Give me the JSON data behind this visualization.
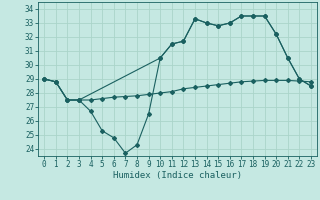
{
  "bg_color": "#c5e8e2",
  "grid_color": "#aad4ca",
  "line_color": "#1a6060",
  "xlabel": "Humidex (Indice chaleur)",
  "ylim": [
    23.5,
    34.5
  ],
  "xlim": [
    -0.5,
    23.5
  ],
  "yticks": [
    24,
    25,
    26,
    27,
    28,
    29,
    30,
    31,
    32,
    33,
    34
  ],
  "xticks": [
    0,
    1,
    2,
    3,
    4,
    5,
    6,
    7,
    8,
    9,
    10,
    11,
    12,
    13,
    14,
    15,
    16,
    17,
    18,
    19,
    20,
    21,
    22,
    23
  ],
  "line_flat_x": [
    0,
    1,
    2,
    3,
    4,
    5,
    6,
    7,
    8,
    9,
    10,
    11,
    12,
    13,
    14,
    15,
    16,
    17,
    18,
    19,
    20,
    21,
    22,
    23
  ],
  "line_flat_y": [
    29.0,
    28.8,
    27.5,
    27.5,
    27.5,
    27.6,
    27.7,
    27.75,
    27.8,
    27.9,
    28.0,
    28.1,
    28.3,
    28.4,
    28.5,
    28.6,
    28.7,
    28.8,
    28.85,
    28.9,
    28.9,
    28.9,
    28.85,
    28.8
  ],
  "line_up_x": [
    0,
    1,
    2,
    3,
    10,
    11,
    12,
    13,
    14,
    15,
    16,
    17,
    18,
    19,
    20,
    21,
    22,
    23
  ],
  "line_up_y": [
    29.0,
    28.8,
    27.5,
    27.5,
    30.5,
    31.5,
    31.7,
    33.3,
    33.0,
    32.8,
    33.0,
    33.5,
    33.5,
    33.5,
    32.2,
    30.5,
    29.0,
    28.5
  ],
  "line_dip_x": [
    0,
    1,
    2,
    3,
    4,
    5,
    6,
    7,
    8,
    9,
    10,
    11,
    12,
    13,
    14,
    15,
    16,
    17,
    18,
    19,
    20,
    21,
    22,
    23
  ],
  "line_dip_y": [
    29.0,
    28.8,
    27.5,
    27.5,
    26.7,
    25.3,
    24.8,
    23.7,
    24.3,
    26.5,
    30.5,
    31.5,
    31.7,
    33.3,
    33.0,
    32.8,
    33.0,
    33.5,
    33.5,
    33.5,
    32.2,
    30.5,
    29.0,
    28.5
  ],
  "marker_size": 2.0,
  "line_width": 0.8,
  "tick_fontsize": 5.5,
  "xlabel_fontsize": 6.5
}
